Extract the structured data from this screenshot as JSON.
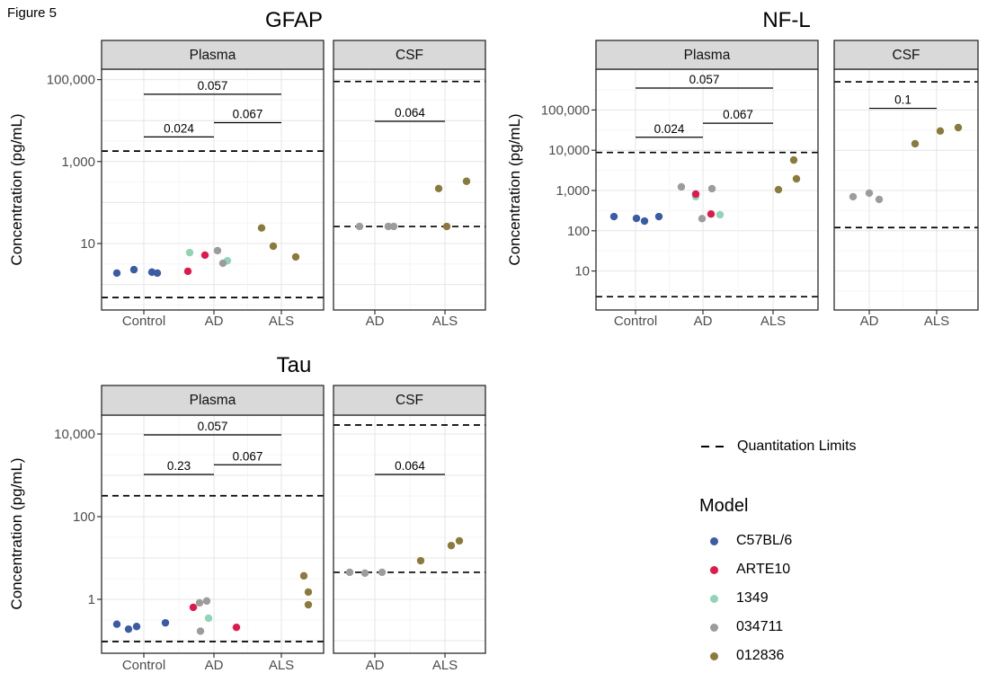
{
  "figure_label": "Figure 5",
  "legend": {
    "quantitation_label": "Quantitation Limits",
    "model_title": "Model",
    "models": [
      {
        "name": "C57BL/6",
        "color": "#3B5BA5"
      },
      {
        "name": "ARTE10",
        "color": "#E0194D"
      },
      {
        "name": "1349",
        "color": "#93D3B6"
      },
      {
        "name": "034711",
        "color": "#9C9C9C"
      },
      {
        "name": "012836",
        "color": "#8A7B3D"
      }
    ]
  },
  "chart_data": [
    {
      "id": "gfap",
      "type": "scatter",
      "title": "GFAP",
      "ylabel": "Concentration (pg/mL)",
      "yscale": "log",
      "yticks": [
        {
          "value": 100000,
          "label": "100,000"
        },
        {
          "value": 1000,
          "label": "1,000"
        },
        {
          "value": 10,
          "label": "10"
        }
      ],
      "panels": [
        {
          "label": "Plasma",
          "groups": [
            "Control",
            "AD",
            "ALS"
          ],
          "quantitation_limits": {
            "lower": 0.48,
            "upper": 1800
          },
          "significance": [
            {
              "from": "Control",
              "to": "ALS",
              "label": "0.057",
              "at": 44000
            },
            {
              "from": "Control",
              "to": "AD",
              "label": "0.024",
              "at": 4000
            },
            {
              "from": "AD",
              "to": "ALS",
              "label": "0.067",
              "at": 8900
            }
          ],
          "points": [
            {
              "group": "Control",
              "model": "C57BL/6",
              "value": 1.9,
              "dx": -30
            },
            {
              "group": "Control",
              "model": "C57BL/6",
              "value": 2.3,
              "dx": -11
            },
            {
              "group": "Control",
              "model": "C57BL/6",
              "value": 2.0,
              "dx": 9
            },
            {
              "group": "Control",
              "model": "C57BL/6",
              "value": 1.9,
              "dx": 15
            },
            {
              "group": "AD",
              "model": "1349",
              "value": 6.0,
              "dx": -27
            },
            {
              "group": "AD",
              "model": "1349",
              "value": 3.8,
              "dx": 15
            },
            {
              "group": "AD",
              "model": "034711",
              "value": 6.7,
              "dx": 4
            },
            {
              "group": "AD",
              "model": "034711",
              "value": 3.3,
              "dx": 10
            },
            {
              "group": "AD",
              "model": "ARTE10",
              "value": 2.1,
              "dx": -29
            },
            {
              "group": "AD",
              "model": "ARTE10",
              "value": 5.2,
              "dx": -10
            },
            {
              "group": "ALS",
              "model": "012836",
              "value": 24,
              "dx": -22
            },
            {
              "group": "ALS",
              "model": "012836",
              "value": 8.6,
              "dx": -9
            },
            {
              "group": "ALS",
              "model": "012836",
              "value": 4.7,
              "dx": 16
            }
          ]
        },
        {
          "label": "CSF",
          "groups": [
            "AD",
            "ALS"
          ],
          "quantitation_limits": {
            "lower": 26,
            "upper": 90000
          },
          "significance": [
            {
              "from": "AD",
              "to": "ALS",
              "label": "0.064",
              "at": 9600
            }
          ],
          "points": [
            {
              "group": "AD",
              "model": "034711",
              "value": 26,
              "dx": -17
            },
            {
              "group": "AD",
              "model": "034711",
              "value": 26,
              "dx": 15
            },
            {
              "group": "AD",
              "model": "034711",
              "value": 26,
              "dx": 21
            },
            {
              "group": "ALS",
              "model": "012836",
              "value": 220,
              "dx": -7
            },
            {
              "group": "ALS",
              "model": "012836",
              "value": 26,
              "dx": 2
            },
            {
              "group": "ALS",
              "model": "012836",
              "value": 330,
              "dx": 24
            }
          ]
        }
      ]
    },
    {
      "id": "nfl",
      "type": "scatter",
      "title": "NF-L",
      "ylabel": "Concentration (pg/mL)",
      "yscale": "log",
      "yticks": [
        {
          "value": 100000,
          "label": "100,000"
        },
        {
          "value": 10000,
          "label": "10,000"
        },
        {
          "value": 1000,
          "label": "1,000"
        },
        {
          "value": 100,
          "label": "100"
        },
        {
          "value": 10,
          "label": "10"
        }
      ],
      "panels": [
        {
          "label": "Plasma",
          "groups": [
            "Control",
            "AD",
            "ALS"
          ],
          "quantitation_limits": {
            "lower": 2.3,
            "upper": 8800
          },
          "significance": [
            {
              "from": "Control",
              "to": "ALS",
              "label": "0.057",
              "at": 350000
            },
            {
              "from": "Control",
              "to": "AD",
              "label": "0.024",
              "at": 21000
            },
            {
              "from": "AD",
              "to": "ALS",
              "label": "0.067",
              "at": 47000
            }
          ],
          "points": [
            {
              "group": "Control",
              "model": "C57BL/6",
              "value": 225,
              "dx": -24
            },
            {
              "group": "Control",
              "model": "C57BL/6",
              "value": 203,
              "dx": 1
            },
            {
              "group": "Control",
              "model": "C57BL/6",
              "value": 174,
              "dx": 10
            },
            {
              "group": "Control",
              "model": "C57BL/6",
              "value": 225,
              "dx": 26
            },
            {
              "group": "AD",
              "model": "1349",
              "value": 700,
              "dx": -8
            },
            {
              "group": "AD",
              "model": "1349",
              "value": 250,
              "dx": 19
            },
            {
              "group": "AD",
              "model": "034711",
              "value": 1230,
              "dx": -24
            },
            {
              "group": "AD",
              "model": "034711",
              "value": 1110,
              "dx": 10
            },
            {
              "group": "AD",
              "model": "034711",
              "value": 200,
              "dx": -1
            },
            {
              "group": "AD",
              "model": "ARTE10",
              "value": 815,
              "dx": -8
            },
            {
              "group": "AD",
              "model": "ARTE10",
              "value": 260,
              "dx": 9
            },
            {
              "group": "ALS",
              "model": "012836",
              "value": 1050,
              "dx": 6
            },
            {
              "group": "ALS",
              "model": "012836",
              "value": 1950,
              "dx": 26
            },
            {
              "group": "ALS",
              "model": "012836",
              "value": 5700,
              "dx": 23
            }
          ]
        },
        {
          "label": "CSF",
          "groups": [
            "AD",
            "ALS"
          ],
          "quantitation_limits": {
            "lower": 120,
            "upper": 500000
          },
          "significance": [
            {
              "from": "AD",
              "to": "ALS",
              "label": "0.1",
              "at": 110000
            }
          ],
          "points": [
            {
              "group": "AD",
              "model": "034711",
              "value": 700,
              "dx": -18
            },
            {
              "group": "AD",
              "model": "034711",
              "value": 860,
              "dx": 0
            },
            {
              "group": "AD",
              "model": "034711",
              "value": 600,
              "dx": 11
            },
            {
              "group": "ALS",
              "model": "012836",
              "value": 14500,
              "dx": -24
            },
            {
              "group": "ALS",
              "model": "012836",
              "value": 30000,
              "dx": 4
            },
            {
              "group": "ALS",
              "model": "012836",
              "value": 36500,
              "dx": 24
            }
          ]
        }
      ]
    },
    {
      "id": "tau",
      "type": "scatter",
      "title": "Tau",
      "ylabel": "Concentration (pg/mL)",
      "yscale": "log",
      "yticks": [
        {
          "value": 10000,
          "label": "10,000"
        },
        {
          "value": 100,
          "label": "100"
        },
        {
          "value": 1,
          "label": "1"
        }
      ],
      "panels": [
        {
          "label": "Plasma",
          "groups": [
            "Control",
            "AD",
            "ALS"
          ],
          "quantitation_limits": {
            "lower": 0.095,
            "upper": 320
          },
          "significance": [
            {
              "from": "Control",
              "to": "ALS",
              "label": "0.057",
              "at": 9500
            },
            {
              "from": "Control",
              "to": "AD",
              "label": "0.23",
              "at": 1050
            },
            {
              "from": "AD",
              "to": "ALS",
              "label": "0.067",
              "at": 1800
            }
          ],
          "points": [
            {
              "group": "Control",
              "model": "C57BL/6",
              "value": 0.25,
              "dx": -30
            },
            {
              "group": "Control",
              "model": "C57BL/6",
              "value": 0.19,
              "dx": -17
            },
            {
              "group": "Control",
              "model": "C57BL/6",
              "value": 0.22,
              "dx": -8
            },
            {
              "group": "Control",
              "model": "C57BL/6",
              "value": 0.27,
              "dx": 24
            },
            {
              "group": "AD",
              "model": "1349",
              "value": 0.35,
              "dx": -6
            },
            {
              "group": "AD",
              "model": "034711",
              "value": 0.82,
              "dx": -16
            },
            {
              "group": "AD",
              "model": "034711",
              "value": 0.91,
              "dx": -8
            },
            {
              "group": "AD",
              "model": "034711",
              "value": 0.17,
              "dx": -15
            },
            {
              "group": "AD",
              "model": "ARTE10",
              "value": 0.64,
              "dx": -23
            },
            {
              "group": "AD",
              "model": "ARTE10",
              "value": 0.21,
              "dx": 25
            },
            {
              "group": "ALS",
              "model": "012836",
              "value": 3.7,
              "dx": 25
            },
            {
              "group": "ALS",
              "model": "012836",
              "value": 1.5,
              "dx": 30
            },
            {
              "group": "ALS",
              "model": "012836",
              "value": 0.74,
              "dx": 30
            }
          ]
        },
        {
          "label": "CSF",
          "groups": [
            "AD",
            "ALS"
          ],
          "quantitation_limits": {
            "lower": 4.5,
            "upper": 16500
          },
          "significance": [
            {
              "from": "AD",
              "to": "ALS",
              "label": "0.064",
              "at": 1050
            }
          ],
          "points": [
            {
              "group": "AD",
              "model": "034711",
              "value": 4.5,
              "dx": -28
            },
            {
              "group": "AD",
              "model": "034711",
              "value": 4.3,
              "dx": -11
            },
            {
              "group": "AD",
              "model": "034711",
              "value": 4.5,
              "dx": 8
            },
            {
              "group": "ALS",
              "model": "012836",
              "value": 8.6,
              "dx": -27
            },
            {
              "group": "ALS",
              "model": "012836",
              "value": 20,
              "dx": 7
            },
            {
              "group": "ALS",
              "model": "012836",
              "value": 26,
              "dx": 16
            }
          ]
        }
      ]
    }
  ]
}
